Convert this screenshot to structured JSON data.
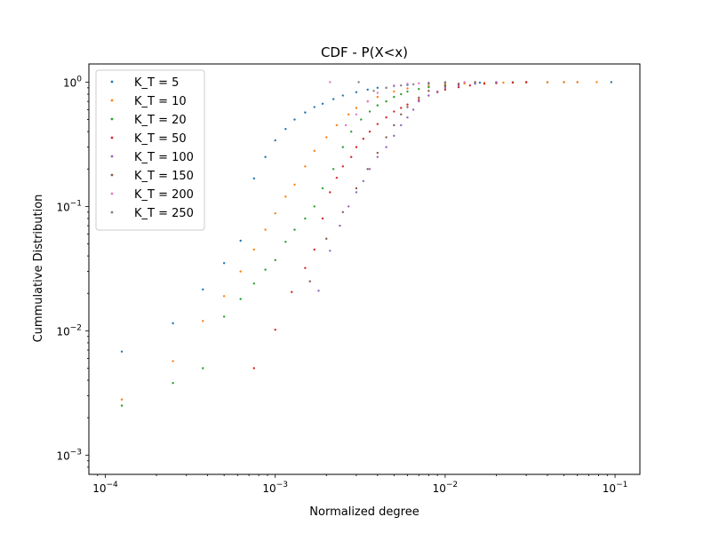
{
  "chart_data": {
    "type": "scatter",
    "title": "CDF - P(X<x)",
    "xlabel": "Normalized degree",
    "ylabel": "Cummulative Distribution",
    "xscale": "log",
    "yscale": "log",
    "xlim": [
      8e-05,
      0.14
    ],
    "ylim": [
      0.0007,
      1.4
    ],
    "x_ticks": [
      {
        "value": 0.0001,
        "mantissa": "10",
        "exp": "−4"
      },
      {
        "value": 0.001,
        "mantissa": "10",
        "exp": "−3"
      },
      {
        "value": 0.01,
        "mantissa": "10",
        "exp": "−2"
      },
      {
        "value": 0.1,
        "mantissa": "10",
        "exp": "−1"
      }
    ],
    "y_ticks": [
      {
        "value": 0.001,
        "mantissa": "10",
        "exp": "−3"
      },
      {
        "value": 0.01,
        "mantissa": "10",
        "exp": "−2"
      },
      {
        "value": 0.1,
        "mantissa": "10",
        "exp": "−1"
      },
      {
        "value": 1,
        "mantissa": "10",
        "exp": "0"
      }
    ],
    "grid": false,
    "legend_position": "top-left",
    "series": [
      {
        "name": "K_T = 5",
        "color": "#1f77b4",
        "x": [
          0.000125,
          0.00025,
          0.000375,
          0.0005,
          0.000625,
          0.00075,
          0.000875,
          0.001,
          0.00115,
          0.0013,
          0.0015,
          0.0017,
          0.0019,
          0.0022,
          0.0025,
          0.003,
          0.0035,
          0.004,
          0.005,
          0.006,
          0.008,
          0.01,
          0.013,
          0.016,
          0.02,
          0.025,
          0.03,
          0.04,
          0.05,
          0.06,
          0.095
        ],
        "y": [
          0.0068,
          0.0115,
          0.0215,
          0.035,
          0.053,
          0.168,
          0.25,
          0.34,
          0.42,
          0.5,
          0.57,
          0.63,
          0.67,
          0.73,
          0.78,
          0.83,
          0.87,
          0.9,
          0.93,
          0.95,
          0.97,
          0.98,
          0.985,
          0.99,
          0.993,
          0.995,
          0.997,
          0.998,
          0.999,
          0.9995,
          1.0
        ]
      },
      {
        "name": "K_T = 10",
        "color": "#ff7f0e",
        "x": [
          0.000125,
          0.00025,
          0.000375,
          0.0005,
          0.000625,
          0.00075,
          0.000875,
          0.001,
          0.00115,
          0.0013,
          0.0015,
          0.0017,
          0.002,
          0.0023,
          0.0027,
          0.003,
          0.0035,
          0.004,
          0.005,
          0.006,
          0.008,
          0.01,
          0.013,
          0.017,
          0.022,
          0.03,
          0.04,
          0.05,
          0.06,
          0.078
        ],
        "y": [
          0.0028,
          0.0057,
          0.012,
          0.019,
          0.03,
          0.045,
          0.065,
          0.088,
          0.12,
          0.15,
          0.21,
          0.28,
          0.36,
          0.45,
          0.55,
          0.62,
          0.7,
          0.76,
          0.84,
          0.89,
          0.93,
          0.96,
          0.975,
          0.985,
          0.99,
          0.995,
          0.997,
          0.998,
          0.999,
          1.0
        ]
      },
      {
        "name": "K_T = 20",
        "color": "#2ca02c",
        "x": [
          0.000125,
          0.00025,
          0.000375,
          0.0005,
          0.000625,
          0.00075,
          0.000875,
          0.001,
          0.00115,
          0.0013,
          0.0015,
          0.0017,
          0.0019,
          0.0022,
          0.0025,
          0.0028,
          0.0032,
          0.0036,
          0.004,
          0.0045,
          0.005,
          0.0055,
          0.006,
          0.007,
          0.008,
          0.01,
          0.012,
          0.015,
          0.02,
          0.025,
          0.03
        ],
        "y": [
          0.0025,
          0.0038,
          0.005,
          0.013,
          0.018,
          0.024,
          0.031,
          0.037,
          0.052,
          0.065,
          0.08,
          0.1,
          0.14,
          0.2,
          0.3,
          0.4,
          0.5,
          0.58,
          0.65,
          0.7,
          0.76,
          0.8,
          0.84,
          0.88,
          0.91,
          0.94,
          0.96,
          0.975,
          0.99,
          0.995,
          1.0
        ]
      },
      {
        "name": "K_T = 50",
        "color": "#d62728",
        "x": [
          0.00075,
          0.001,
          0.00125,
          0.0015,
          0.0017,
          0.0019,
          0.0021,
          0.0023,
          0.0025,
          0.0028,
          0.003,
          0.0033,
          0.0036,
          0.004,
          0.0045,
          0.005,
          0.0055,
          0.006,
          0.007,
          0.008,
          0.009,
          0.01,
          0.012,
          0.014,
          0.017,
          0.02,
          0.025,
          0.03
        ],
        "y": [
          0.005,
          0.0102,
          0.0205,
          0.032,
          0.045,
          0.08,
          0.13,
          0.17,
          0.21,
          0.25,
          0.3,
          0.35,
          0.4,
          0.46,
          0.52,
          0.58,
          0.62,
          0.66,
          0.72,
          0.78,
          0.83,
          0.87,
          0.91,
          0.94,
          0.97,
          0.98,
          0.99,
          1.0
        ]
      },
      {
        "name": "K_T = 100",
        "color": "#9467bd",
        "x": [
          0.0018,
          0.0021,
          0.0024,
          0.0027,
          0.003,
          0.0033,
          0.0036,
          0.004,
          0.0045,
          0.005,
          0.0055,
          0.006,
          0.0065,
          0.007,
          0.008,
          0.009,
          0.01,
          0.012,
          0.015,
          0.02
        ],
        "y": [
          0.021,
          0.044,
          0.07,
          0.1,
          0.13,
          0.16,
          0.2,
          0.25,
          0.3,
          0.37,
          0.45,
          0.52,
          0.6,
          0.7,
          0.78,
          0.84,
          0.9,
          0.94,
          0.97,
          1.0
        ]
      },
      {
        "name": "K_T = 150",
        "color": "#8c564b",
        "x": [
          0.0016,
          0.002,
          0.0025,
          0.003,
          0.0035,
          0.004,
          0.0045,
          0.005,
          0.0055,
          0.006,
          0.007,
          0.008,
          0.01,
          0.012,
          0.015
        ],
        "y": [
          0.025,
          0.055,
          0.09,
          0.14,
          0.2,
          0.27,
          0.36,
          0.45,
          0.55,
          0.63,
          0.75,
          0.85,
          0.93,
          0.97,
          1.0
        ]
      },
      {
        "name": "K_T = 200",
        "color": "#e377c2",
        "x": [
          0.0021,
          0.0026,
          0.003,
          0.0035,
          0.004,
          0.0045,
          0.005,
          0.006,
          0.007,
          0.008,
          0.01,
          0.013
        ],
        "y": [
          1.0,
          0.45,
          0.55,
          0.7,
          0.82,
          0.9,
          0.94,
          0.97,
          0.98,
          0.99,
          0.995,
          1.0
        ]
      },
      {
        "name": "K_T = 250",
        "color": "#7f7f7f",
        "x": [
          0.0031,
          0.0038,
          0.0045,
          0.0055,
          0.0065,
          0.008,
          0.01
        ],
        "y": [
          1.0,
          0.85,
          0.9,
          0.94,
          0.96,
          0.98,
          1.0
        ]
      }
    ]
  }
}
